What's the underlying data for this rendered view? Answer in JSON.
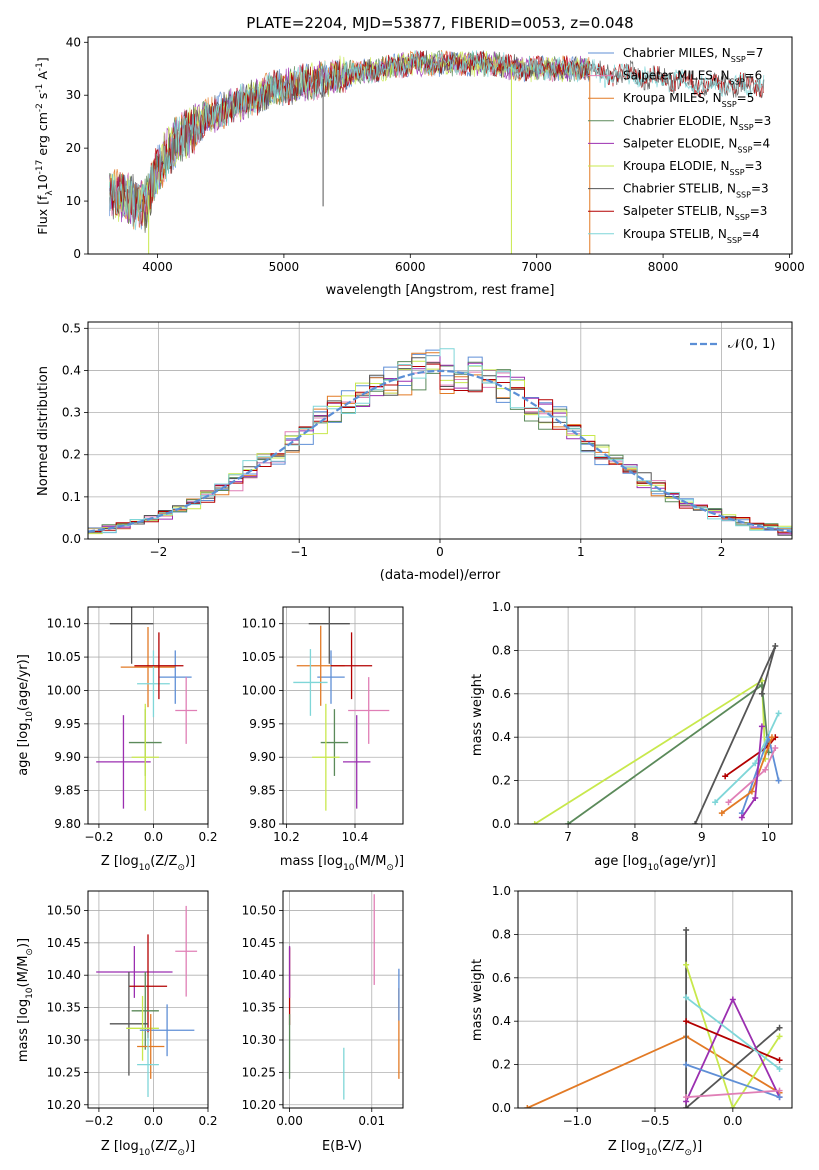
{
  "title": "PLATE=2204, MJD=53877, FIBERID=0053, z=0.048",
  "colors": {
    "chabrier_miles": "#5f8fd6",
    "salpeter_miles": "#e07fb6",
    "kroupa_miles": "#e27a25",
    "chabrier_elodie": "#5b8a5a",
    "salpeter_elodie": "#9b2fb0",
    "kroupa_elodie": "#c8e84c",
    "chabrier_stelib": "#555555",
    "salpeter_stelib": "#b30000",
    "kroupa_stelib": "#7fd6d8",
    "normal_curve": "#5b8fd6"
  },
  "chart_data": [
    {
      "id": "spectrum",
      "type": "line",
      "xlabel": "wavelength [Angstrom, rest frame]",
      "ylabel": "Flux [f$_\\lambda$10$^{-17}$ erg cm$^{-2}$ s$^{-1}$ A$^{-1}$]",
      "xlim": [
        3450,
        9020
      ],
      "ylim": [
        0,
        41
      ],
      "xticks": [
        "4000",
        "5000",
        "6000",
        "7000",
        "8000",
        "9000"
      ],
      "yticks": [
        "0",
        "10",
        "20",
        "30",
        "40"
      ],
      "legend_position": "right",
      "legend": [
        {
          "label": "Chabrier MILES, N",
          "sub": "SSP",
          "eq": "=7",
          "color": "chabrier_miles"
        },
        {
          "label": "Salpeter MILES, N",
          "sub": "SSP",
          "eq": "=6",
          "color": "salpeter_miles"
        },
        {
          "label": "Kroupa MILES, N",
          "sub": "SSP",
          "eq": "=5",
          "color": "kroupa_miles"
        },
        {
          "label": "Chabrier ELODIE, N",
          "sub": "SSP",
          "eq": "=3",
          "color": "chabrier_elodie"
        },
        {
          "label": "Salpeter ELODIE, N",
          "sub": "SSP",
          "eq": "=4",
          "color": "salpeter_elodie"
        },
        {
          "label": "Kroupa ELODIE, N",
          "sub": "SSP",
          "eq": "=3",
          "color": "kroupa_elodie"
        },
        {
          "label": "Chabrier STELIB, N",
          "sub": "SSP",
          "eq": "=3",
          "color": "chabrier_stelib"
        },
        {
          "label": "Salpeter STELIB, N",
          "sub": "SSP",
          "eq": "=3",
          "color": "salpeter_stelib"
        },
        {
          "label": "Kroupa STELIB, N",
          "sub": "SSP",
          "eq": "=4",
          "color": "kroupa_stelib"
        }
      ],
      "continuum": [
        [
          3620,
          12
        ],
        [
          3800,
          10
        ],
        [
          3900,
          9
        ],
        [
          4000,
          16
        ],
        [
          4100,
          20
        ],
        [
          4200,
          22
        ],
        [
          4300,
          24
        ],
        [
          4400,
          26
        ],
        [
          4500,
          27
        ],
        [
          4700,
          29
        ],
        [
          4900,
          31
        ],
        [
          5100,
          32
        ],
        [
          5300,
          33
        ],
        [
          5500,
          34
        ],
        [
          5800,
          35
        ],
        [
          6000,
          36
        ],
        [
          6300,
          36
        ],
        [
          6600,
          36
        ],
        [
          6900,
          35
        ],
        [
          7200,
          35
        ],
        [
          7400,
          35
        ],
        [
          7500,
          34
        ],
        [
          7700,
          34
        ],
        [
          8000,
          33
        ],
        [
          8300,
          32
        ],
        [
          8600,
          32
        ],
        [
          8800,
          32
        ]
      ],
      "dropouts": [
        {
          "x": 3930,
          "y": 0,
          "color": "kroupa_elodie"
        },
        {
          "x": 5310,
          "y": 9,
          "color": "chabrier_stelib"
        },
        {
          "x": 6800,
          "y": 0,
          "color": "kroupa_elodie"
        },
        {
          "x": 7420,
          "y": 0,
          "color": "kroupa_miles"
        }
      ]
    },
    {
      "id": "residual-histogram",
      "type": "histogram",
      "xlabel": "(data-model)/error",
      "ylabel": "Normed distribution",
      "xlim": [
        -2.5,
        2.5
      ],
      "ylim": [
        0,
        0.515
      ],
      "xticks": [
        "−2",
        "−1",
        "0",
        "1",
        "2"
      ],
      "yticks": [
        "0.0",
        "0.1",
        "0.2",
        "0.3",
        "0.4",
        "0.5"
      ],
      "legend_position": "top-right",
      "legend": [
        {
          "label": "𝒩(0, 1)",
          "color": "normal_curve"
        }
      ],
      "bin_width": 0.1
    },
    {
      "id": "Z-age",
      "type": "errorbar",
      "xlabel": "Z [log$_{10}$(Z/Z$_\\odot$)]",
      "ylabel": "age  [log$_{10}$(age/yr)]",
      "xlim": [
        -0.24,
        0.2
      ],
      "ylim": [
        9.8,
        10.125
      ],
      "xticks": [
        "−0.2",
        "0.0",
        "0.2"
      ],
      "yticks": [
        "9.80",
        "9.85",
        "9.90",
        "9.95",
        "10.00",
        "10.05",
        "10.10"
      ],
      "points": [
        {
          "x": -0.08,
          "y": 10.1,
          "xerr": 0.08,
          "yerr": 0.06,
          "color": "chabrier_stelib"
        },
        {
          "x": 0.08,
          "y": 10.02,
          "xerr": 0.06,
          "yerr": 0.04,
          "color": "chabrier_miles"
        },
        {
          "x": 0.12,
          "y": 9.97,
          "xerr": 0.04,
          "yerr": 0.05,
          "color": "salpeter_miles"
        },
        {
          "x": -0.02,
          "y": 10.035,
          "xerr": 0.1,
          "yerr": 0.06,
          "color": "kroupa_miles"
        },
        {
          "x": -0.03,
          "y": 9.922,
          "xerr": 0.06,
          "yerr": 0.05,
          "color": "chabrier_elodie"
        },
        {
          "x": -0.11,
          "y": 9.893,
          "xerr": 0.1,
          "yerr": 0.07,
          "color": "salpeter_elodie"
        },
        {
          "x": -0.03,
          "y": 9.9,
          "xerr": 0.05,
          "yerr": 0.08,
          "color": "kroupa_elodie"
        },
        {
          "x": 0.0,
          "y": 10.01,
          "xerr": 0.06,
          "yerr": 0.05,
          "color": "kroupa_stelib"
        },
        {
          "x": 0.02,
          "y": 10.037,
          "xerr": 0.09,
          "yerr": 0.05,
          "color": "salpeter_stelib"
        }
      ]
    },
    {
      "id": "mass-age",
      "type": "errorbar",
      "xlabel": "mass [log$_{10}$(M/M$_\\odot$)]",
      "ylabel": "",
      "xlim": [
        10.19,
        10.54
      ],
      "ylim": [
        9.8,
        10.125
      ],
      "xticks": [
        "10.2",
        "10.4"
      ],
      "yticks": [
        "9.80",
        "9.85",
        "9.90",
        "9.95",
        "10.00",
        "10.05",
        "10.10"
      ],
      "points": [
        {
          "x": 10.325,
          "y": 10.1,
          "xerr": 0.06,
          "yerr": 0.06,
          "color": "chabrier_stelib"
        },
        {
          "x": 10.33,
          "y": 10.02,
          "xerr": 0.04,
          "yerr": 0.04,
          "color": "chabrier_miles"
        },
        {
          "x": 10.44,
          "y": 9.97,
          "xerr": 0.06,
          "yerr": 0.05,
          "color": "salpeter_miles"
        },
        {
          "x": 10.3,
          "y": 10.037,
          "xerr": 0.07,
          "yerr": 0.06,
          "color": "kroupa_miles"
        },
        {
          "x": 10.34,
          "y": 9.922,
          "xerr": 0.04,
          "yerr": 0.05,
          "color": "chabrier_elodie"
        },
        {
          "x": 10.405,
          "y": 9.893,
          "xerr": 0.04,
          "yerr": 0.07,
          "color": "salpeter_elodie"
        },
        {
          "x": 10.315,
          "y": 9.9,
          "xerr": 0.04,
          "yerr": 0.08,
          "color": "kroupa_elodie"
        },
        {
          "x": 10.27,
          "y": 10.012,
          "xerr": 0.05,
          "yerr": 0.05,
          "color": "kroupa_stelib"
        },
        {
          "x": 10.39,
          "y": 10.037,
          "xerr": 0.06,
          "yerr": 0.05,
          "color": "salpeter_stelib"
        }
      ]
    },
    {
      "id": "Z-mass",
      "type": "errorbar",
      "xlabel": "Z [log$_{10}$(Z/Z$_\\odot$)]",
      "ylabel": "mass [log$_{10}$(M/M$_\\odot$)]",
      "xlim": [
        -0.24,
        0.2
      ],
      "ylim": [
        10.195,
        10.53
      ],
      "xticks": [
        "−0.2",
        "0.0",
        "0.2"
      ],
      "yticks": [
        "10.20",
        "10.25",
        "10.30",
        "10.35",
        "10.40",
        "10.45",
        "10.50"
      ],
      "points": [
        {
          "x": 0.12,
          "y": 10.437,
          "xerr": 0.04,
          "yerr": 0.07,
          "color": "salpeter_miles"
        },
        {
          "x": -0.07,
          "y": 10.405,
          "xerr": 0.14,
          "yerr": 0.04,
          "color": "salpeter_elodie"
        },
        {
          "x": -0.02,
          "y": 10.383,
          "xerr": 0.07,
          "yerr": 0.08,
          "color": "salpeter_stelib"
        },
        {
          "x": -0.03,
          "y": 10.345,
          "xerr": 0.05,
          "yerr": 0.06,
          "color": "chabrier_elodie"
        },
        {
          "x": -0.09,
          "y": 10.325,
          "xerr": 0.07,
          "yerr": 0.08,
          "color": "chabrier_stelib"
        },
        {
          "x": -0.04,
          "y": 10.318,
          "xerr": 0.06,
          "yerr": 0.05,
          "color": "kroupa_elodie"
        },
        {
          "x": 0.05,
          "y": 10.315,
          "xerr": 0.1,
          "yerr": 0.04,
          "color": "chabrier_miles"
        },
        {
          "x": -0.01,
          "y": 10.29,
          "xerr": 0.05,
          "yerr": 0.05,
          "color": "kroupa_miles"
        },
        {
          "x": -0.02,
          "y": 10.262,
          "xerr": 0.04,
          "yerr": 0.05,
          "color": "kroupa_stelib"
        }
      ]
    },
    {
      "id": "EBV-mass",
      "type": "errorbar",
      "xlabel": "E(B-V)",
      "ylabel": "",
      "xlim": [
        -0.0008,
        0.0138
      ],
      "ylim": [
        10.195,
        10.53
      ],
      "xticks": [
        "0.00",
        "0.01"
      ],
      "yticks": [
        "10.20",
        "10.25",
        "10.30",
        "10.35",
        "10.40",
        "10.45",
        "10.50"
      ],
      "points": [
        {
          "x": 0.0,
          "y": 10.383,
          "xerr": 0.0,
          "yerr": 0.06,
          "color": "salpeter_stelib"
        },
        {
          "x": 0.0,
          "y": 10.405,
          "xerr": 0.0,
          "yerr": 0.04,
          "color": "salpeter_elodie"
        },
        {
          "x": 0.0,
          "y": 10.29,
          "xerr": 0.0,
          "yerr": 0.05,
          "color": "chabrier_elodie"
        },
        {
          "x": 0.0103,
          "y": 10.455,
          "xerr": 0.0,
          "yerr": 0.07,
          "color": "salpeter_miles"
        },
        {
          "x": 0.0066,
          "y": 10.248,
          "xerr": 0.0,
          "yerr": 0.04,
          "color": "kroupa_stelib"
        },
        {
          "x": 0.0133,
          "y": 10.31,
          "xerr": 0.0,
          "yerr": 0.07,
          "color": "kroupa_miles"
        },
        {
          "x": 0.0133,
          "y": 10.37,
          "xerr": 0.0,
          "yerr": 0.04,
          "color": "chabrier_miles"
        }
      ]
    },
    {
      "id": "age-massweight",
      "type": "line",
      "xlabel": "age  [log$_{10}$(age/yr)]",
      "ylabel": "mass weight",
      "xlim": [
        6.25,
        10.35
      ],
      "ylim": [
        0,
        1
      ],
      "xticks": [
        "7",
        "8",
        "9",
        "10"
      ],
      "yticks": [
        "0.0",
        "0.2",
        "0.4",
        "0.6",
        "0.8",
        "1.0"
      ],
      "series": [
        {
          "color": "kroupa_elodie",
          "points": [
            [
              6.5,
              0.0
            ],
            [
              9.9,
              0.66
            ],
            [
              9.95,
              0.3
            ]
          ]
        },
        {
          "color": "chabrier_elodie",
          "points": [
            [
              7.0,
              0.0
            ],
            [
              9.9,
              0.64
            ],
            [
              10.0,
              0.33
            ]
          ]
        },
        {
          "color": "chabrier_stelib",
          "points": [
            [
              8.9,
              0.0
            ],
            [
              10.1,
              0.82
            ],
            [
              9.9,
              0.6
            ]
          ]
        },
        {
          "color": "salpeter_stelib",
          "points": [
            [
              9.35,
              0.22
            ],
            [
              10.0,
              0.36
            ],
            [
              10.1,
              0.4
            ]
          ]
        },
        {
          "color": "kroupa_stelib",
          "points": [
            [
              9.2,
              0.1
            ],
            [
              9.8,
              0.28
            ],
            [
              10.15,
              0.51
            ]
          ]
        },
        {
          "color": "chabrier_miles",
          "points": [
            [
              9.6,
              0.05
            ],
            [
              10.0,
              0.4
            ],
            [
              10.15,
              0.2
            ]
          ]
        },
        {
          "color": "kroupa_miles",
          "points": [
            [
              9.3,
              0.05
            ],
            [
              9.75,
              0.15
            ],
            [
              10.05,
              0.4
            ]
          ]
        },
        {
          "color": "salpeter_miles",
          "points": [
            [
              9.4,
              0.1
            ],
            [
              9.95,
              0.25
            ],
            [
              10.1,
              0.35
            ]
          ]
        },
        {
          "color": "salpeter_elodie",
          "points": [
            [
              9.6,
              0.03
            ],
            [
              9.8,
              0.12
            ],
            [
              9.9,
              0.45
            ]
          ]
        }
      ]
    },
    {
      "id": "Z-massweight",
      "type": "line",
      "xlabel": "Z [log$_{10}$(Z/Z$_\\odot$)]",
      "ylabel": "mass weight",
      "xlim": [
        -1.38,
        0.38
      ],
      "ylim": [
        0,
        1
      ],
      "xticks": [
        "−1.0",
        "−0.5",
        "0.0"
      ],
      "yticks": [
        "0.0",
        "0.2",
        "0.4",
        "0.6",
        "0.8",
        "1.0"
      ],
      "series": [
        {
          "color": "kroupa_miles",
          "points": [
            [
              -1.32,
              0.0
            ],
            [
              -0.3,
              0.33
            ],
            [
              0.3,
              0.07
            ]
          ]
        },
        {
          "color": "chabrier_stelib",
          "points": [
            [
              -0.3,
              0.82
            ],
            [
              -0.3,
              0.0
            ],
            [
              0.3,
              0.37
            ]
          ]
        },
        {
          "color": "kroupa_elodie",
          "points": [
            [
              -0.3,
              0.66
            ],
            [
              0.0,
              0.0
            ],
            [
              0.3,
              0.33
            ]
          ]
        },
        {
          "color": "salpeter_elodie",
          "points": [
            [
              -0.3,
              0.03
            ],
            [
              0.0,
              0.5
            ],
            [
              0.3,
              0.05
            ]
          ]
        },
        {
          "color": "salpeter_stelib",
          "points": [
            [
              -0.3,
              0.4
            ],
            [
              0.3,
              0.22
            ]
          ]
        },
        {
          "color": "kroupa_stelib",
          "points": [
            [
              -0.3,
              0.51
            ],
            [
              0.3,
              0.18
            ]
          ]
        },
        {
          "color": "chabrier_miles",
          "points": [
            [
              -0.3,
              0.2
            ],
            [
              0.3,
              0.05
            ]
          ]
        },
        {
          "color": "salpeter_miles",
          "points": [
            [
              -0.3,
              0.05
            ],
            [
              0.3,
              0.08
            ]
          ]
        }
      ]
    }
  ]
}
